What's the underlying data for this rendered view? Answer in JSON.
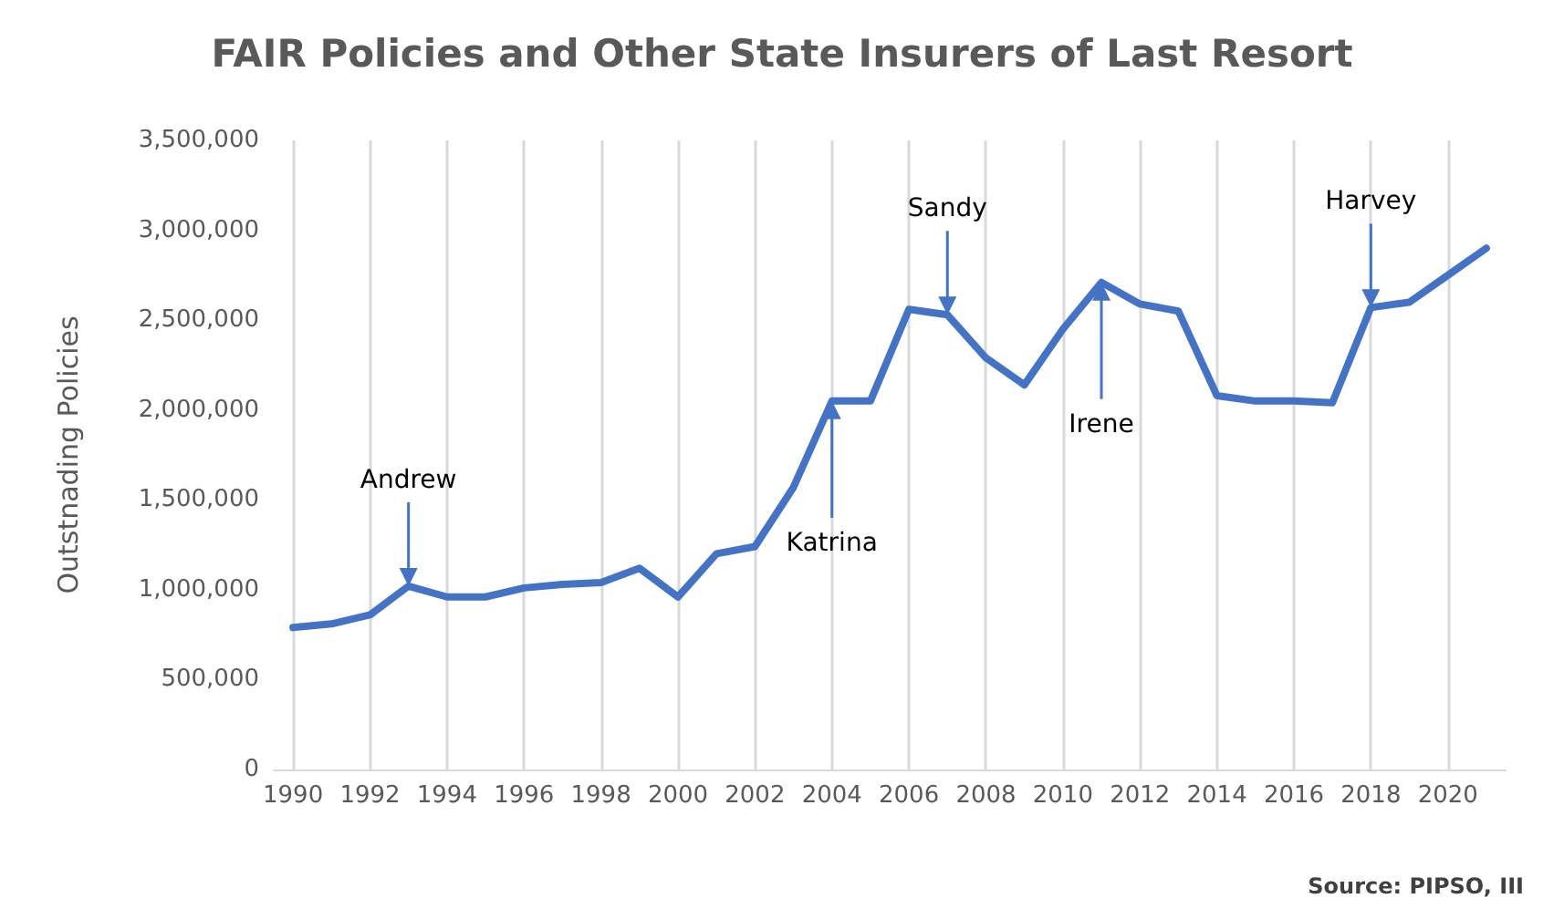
{
  "chart_data": {
    "type": "line",
    "title": "FAIR Policies and Other State Insurers of Last Resort",
    "ylabel": "Outstnading Policies",
    "x": [
      1990,
      1991,
      1992,
      1993,
      1994,
      1995,
      1996,
      1997,
      1998,
      1999,
      2000,
      2001,
      2002,
      2003,
      2004,
      2005,
      2006,
      2007,
      2008,
      2009,
      2010,
      2011,
      2012,
      2013,
      2014,
      2015,
      2016,
      2017,
      2018,
      2019,
      2020,
      2021
    ],
    "series": [
      {
        "color": "#4472c4",
        "values": [
          790000,
          810000,
          860000,
          1020000,
          960000,
          960000,
          1010000,
          1030000,
          1040000,
          1120000,
          960000,
          1200000,
          1240000,
          1570000,
          2050000,
          2050000,
          2560000,
          2530000,
          2290000,
          2140000,
          2450000,
          2710000,
          2590000,
          2550000,
          2080000,
          2050000,
          2050000,
          2040000,
          2570000,
          2600000,
          2750000,
          2900000
        ]
      }
    ],
    "xlim": [
      1989.5,
      2021.5
    ],
    "xticks": [
      1990,
      1992,
      1994,
      1996,
      1998,
      2000,
      2002,
      2004,
      2006,
      2008,
      2010,
      2012,
      2014,
      2016,
      2018,
      2020
    ],
    "ylim": [
      0,
      3500000
    ],
    "yticks": [
      0,
      {
        "value": 500000,
        "label": "500,000"
      },
      {
        "value": 1000000,
        "label": "1,000,000"
      },
      {
        "value": 1500000,
        "label": "1,500,000"
      },
      {
        "value": 2000000,
        "label": "2,000,000"
      },
      {
        "value": 2500000,
        "label": "2,500,000"
      },
      {
        "value": 3000000,
        "label": "3,000,000"
      },
      {
        "value": 3500000,
        "label": "3,500,000"
      }
    ],
    "grid": "x",
    "marker": "none",
    "line_style": "solid",
    "annotations": [
      {
        "text": "Andrew",
        "x": 1993,
        "y": 1020000
      },
      {
        "text": "Katrina",
        "x": 2004,
        "y": 2050000
      },
      {
        "text": "Sandy",
        "x": 2007,
        "y": 2530000
      },
      {
        "text": "Irene",
        "x": 2011,
        "y": 2710000
      },
      {
        "text": "Harvey",
        "x": 2018,
        "y": 2570000
      },
      "Source: PIPSO, III"
    ]
  }
}
